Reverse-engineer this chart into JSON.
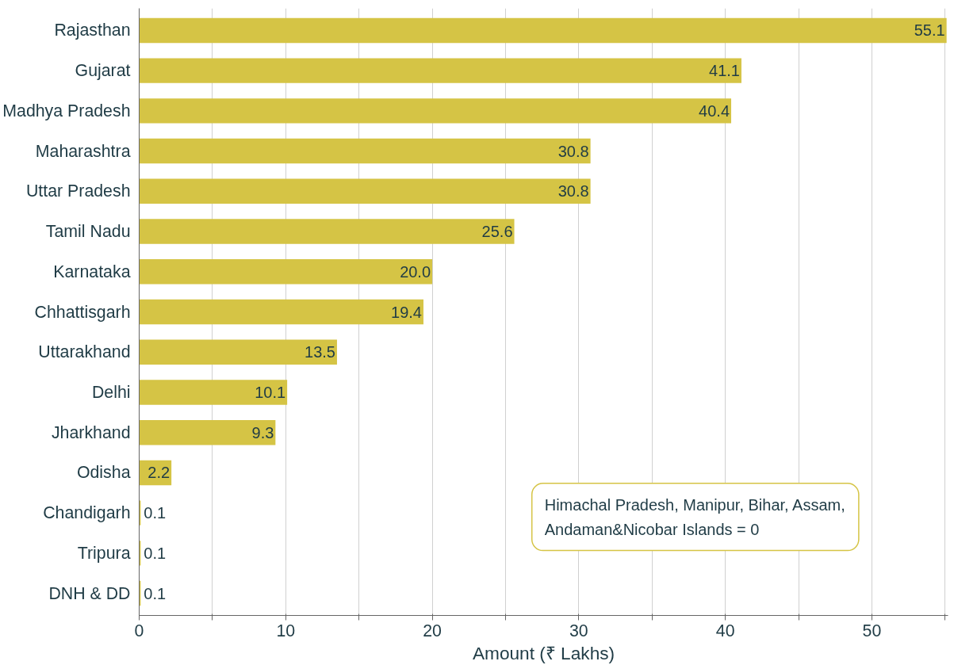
{
  "chart_data": {
    "type": "bar",
    "orientation": "horizontal",
    "xlabel": "Amount (₹ Lakhs)",
    "categories": [
      "Rajasthan",
      "Gujarat",
      "Madhya Pradesh",
      "Maharashtra",
      "Uttar Pradesh",
      "Tamil Nadu",
      "Karnataka",
      "Chhattisgarh",
      "Uttarakhand",
      "Delhi",
      "Jharkhand",
      "Odisha",
      "Chandigarh",
      "Tripura",
      "DNH & DD"
    ],
    "values": [
      55.1,
      41.1,
      40.4,
      30.8,
      30.8,
      25.6,
      20.0,
      19.4,
      13.5,
      10.1,
      9.3,
      2.2,
      0.1,
      0.1,
      0.1
    ],
    "value_labels": [
      "55.1",
      "41.1",
      "40.4",
      "30.8",
      "30.8",
      "25.6",
      "20.0",
      "19.4",
      "13.5",
      "10.1",
      "9.3",
      "2.2",
      "0.1",
      "0.1",
      "0.1"
    ],
    "color": "#d5c445",
    "xlim": [
      0,
      55.2
    ],
    "xticks": [
      0,
      {
        "value": 5,
        "label": null
      },
      10,
      {
        "value": 15,
        "label": null
      },
      20,
      {
        "value": 25,
        "label": null
      },
      30,
      {
        "value": 35,
        "label": null
      },
      40,
      {
        "value": 45,
        "label": null
      },
      50,
      {
        "value": 55,
        "label": null
      }
    ],
    "grid": "x",
    "annotations": [
      {
        "text": "Himachal Pradesh, Manipur, Bihar, Assam,\nAndaman&Nicobar Islands = 0"
      }
    ]
  }
}
